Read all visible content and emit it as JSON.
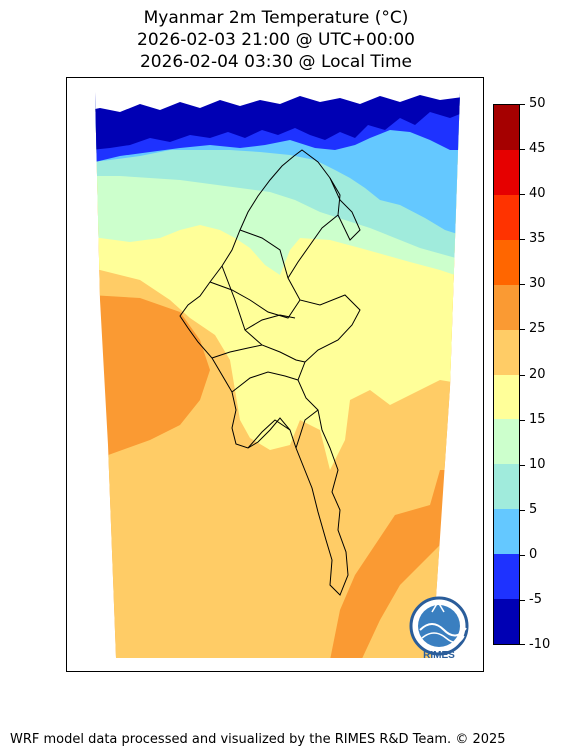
{
  "title_lines": [
    "Myanmar 2m Temperature (°C)",
    "2026-02-03 21:00 @ UTC+00:00",
    "2026-02-04 03:30 @ Local Time"
  ],
  "colorbar": {
    "ticks": [
      "50",
      "45",
      "40",
      "35",
      "30",
      "25",
      "20",
      "15",
      "10",
      "5",
      "0",
      "-5",
      "-10"
    ],
    "colors": [
      "#a50000",
      "#e60000",
      "#ff3300",
      "#ff6600",
      "#fa9a33",
      "#ffcc66",
      "#ffff99",
      "#ccffcc",
      "#a0ebdc",
      "#64c8ff",
      "#1e32ff",
      "#0000b4"
    ]
  },
  "logo": {
    "text": "RIMES",
    "colors": {
      "ring": "#2a5d9a",
      "water": "#3a7fc0"
    }
  },
  "map_colors": {
    "warm_sea": "#fa9a33",
    "mid": "#ffcc66",
    "pale": "#ffff99",
    "mint": "#ccffcc",
    "aqua": "#a0ebdc",
    "sky": "#64c8ff",
    "blue": "#1e32ff",
    "navy": "#0000b4",
    "border": "#000000"
  },
  "footer": "WRF model data processed and visualized by the RIMES R&D Team. © 2025"
}
